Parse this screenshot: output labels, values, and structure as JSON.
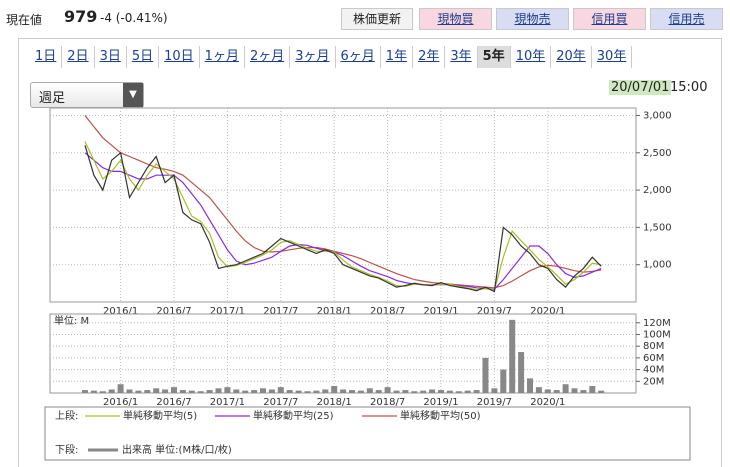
{
  "header": {
    "price_label": "現在値",
    "price": "979",
    "change": "-4 (-0.41%)",
    "buttons": [
      "株価更新",
      "現物買",
      "現物売",
      "信用買",
      "信用売"
    ]
  },
  "tabs": [
    "1日",
    "2日",
    "3日",
    "5日",
    "10日",
    "1ヶ月",
    "2ヶ月",
    "3ヶ月",
    "6ヶ月",
    "1年",
    "2年",
    "3年",
    "5年",
    "10年",
    "20年",
    "30年"
  ],
  "active_tab": "5年",
  "select": "週足",
  "timestamp": {
    "date": "20/07/01",
    "time": "15:00"
  },
  "chart_data": [
    {
      "type": "line",
      "legend_label": "上段:",
      "x": [
        "2015/9",
        "2015/10",
        "2015/11",
        "2015/12",
        "2016/1",
        "2016/2",
        "2016/3",
        "2016/4",
        "2016/5",
        "2016/6",
        "2016/7",
        "2016/8",
        "2016/9",
        "2016/10",
        "2016/11",
        "2016/12",
        "2017/1",
        "2017/2",
        "2017/3",
        "2017/4",
        "2017/5",
        "2017/6",
        "2017/7",
        "2017/8",
        "2017/9",
        "2017/10",
        "2017/11",
        "2017/12",
        "2018/1",
        "2018/2",
        "2018/3",
        "2018/4",
        "2018/5",
        "2018/6",
        "2018/7",
        "2018/8",
        "2018/9",
        "2018/10",
        "2018/11",
        "2018/12",
        "2019/1",
        "2019/2",
        "2019/3",
        "2019/4",
        "2019/5",
        "2019/6",
        "2019/7",
        "2019/8",
        "2019/9",
        "2019/10",
        "2019/11",
        "2019/12",
        "2020/1",
        "2020/2",
        "2020/3",
        "2020/4",
        "2020/5",
        "2020/6",
        "2020/7"
      ],
      "values": [
        2600,
        2200,
        2000,
        2400,
        2500,
        1900,
        2100,
        2300,
        2450,
        2100,
        2200,
        1700,
        1600,
        1550,
        1300,
        950,
        980,
        1000,
        1050,
        1100,
        1150,
        1250,
        1350,
        1300,
        1250,
        1200,
        1150,
        1200,
        1150,
        1000,
        950,
        900,
        850,
        820,
        760,
        700,
        720,
        750,
        730,
        720,
        760,
        720,
        700,
        680,
        650,
        700,
        640,
        1500,
        1400,
        1250,
        1150,
        1000,
        950,
        800,
        700,
        850,
        950,
        1100,
        979
      ],
      "color": "#333333",
      "series": [
        {
          "name": "単純移動平均(5)",
          "color": "#a8c020",
          "values": [
            2650,
            2400,
            2150,
            2250,
            2400,
            2150,
            2000,
            2200,
            2350,
            2250,
            2150,
            1900,
            1650,
            1580,
            1420,
            1100,
            970,
            990,
            1030,
            1080,
            1130,
            1200,
            1300,
            1320,
            1270,
            1220,
            1180,
            1180,
            1170,
            1060,
            970,
            920,
            870,
            830,
            780,
            720,
            710,
            740,
            735,
            725,
            740,
            735,
            710,
            690,
            665,
            680,
            660,
            1100,
            1450,
            1320,
            1200,
            1070,
            970,
            860,
            740,
            800,
            900,
            1020,
            1000
          ]
        },
        {
          "name": "単純移動平均(25)",
          "color": "#8a2be2",
          "values": [
            2500,
            2400,
            2300,
            2250,
            2250,
            2200,
            2150,
            2150,
            2200,
            2200,
            2200,
            2100,
            1950,
            1800,
            1600,
            1400,
            1200,
            1050,
            1000,
            1020,
            1060,
            1100,
            1180,
            1250,
            1270,
            1260,
            1220,
            1190,
            1170,
            1120,
            1050,
            980,
            920,
            880,
            840,
            790,
            760,
            740,
            730,
            730,
            735,
            730,
            720,
            710,
            690,
            680,
            670,
            800,
            950,
            1100,
            1250,
            1250,
            1150,
            1000,
            880,
            830,
            850,
            900,
            950
          ]
        },
        {
          "name": "単純移動平均(50)",
          "color": "#c0504d",
          "values": [
            3000,
            2850,
            2700,
            2600,
            2500,
            2450,
            2400,
            2350,
            2300,
            2280,
            2250,
            2200,
            2100,
            2000,
            1900,
            1750,
            1600,
            1450,
            1320,
            1230,
            1180,
            1170,
            1180,
            1200,
            1220,
            1230,
            1230,
            1210,
            1180,
            1150,
            1120,
            1080,
            1030,
            980,
            930,
            880,
            840,
            800,
            780,
            760,
            750,
            740,
            730,
            720,
            710,
            700,
            690,
            720,
            780,
            850,
            920,
            970,
            990,
            980,
            950,
            920,
            900,
            910,
            930
          ]
        }
      ],
      "ylim": [
        500,
        3100
      ],
      "yticks": [
        {
          "value": 1000,
          "label": "1,000"
        },
        {
          "value": 1500,
          "label": "1,500"
        },
        {
          "value": 2000,
          "label": "2,000"
        },
        {
          "value": 2500,
          "label": "2,500"
        },
        {
          "value": 3000,
          "label": "3,000"
        }
      ],
      "xticks": [
        "2016/1",
        "2016/7",
        "2017/1",
        "2017/7",
        "2018/1",
        "2018/7",
        "2019/1",
        "2019/7",
        "2020/1"
      ],
      "grid": true
    },
    {
      "type": "bar",
      "legend_label": "下段:",
      "name": "出来高 単位:(M株/口/枚)",
      "unit_label": "単位: M",
      "color": "#888888",
      "x": [
        "2015/9",
        "2015/10",
        "2015/11",
        "2015/12",
        "2016/1",
        "2016/2",
        "2016/3",
        "2016/4",
        "2016/5",
        "2016/6",
        "2016/7",
        "2016/8",
        "2016/9",
        "2016/10",
        "2016/11",
        "2016/12",
        "2017/1",
        "2017/2",
        "2017/3",
        "2017/4",
        "2017/5",
        "2017/6",
        "2017/7",
        "2017/8",
        "2017/9",
        "2017/10",
        "2017/11",
        "2017/12",
        "2018/1",
        "2018/2",
        "2018/3",
        "2018/4",
        "2018/5",
        "2018/6",
        "2018/7",
        "2018/8",
        "2018/9",
        "2018/10",
        "2018/11",
        "2018/12",
        "2019/1",
        "2019/2",
        "2019/3",
        "2019/4",
        "2019/5",
        "2019/6",
        "2019/7",
        "2019/8",
        "2019/9",
        "2019/10",
        "2019/11",
        "2019/12",
        "2020/1",
        "2020/2",
        "2020/3",
        "2020/4",
        "2020/5",
        "2020/6",
        "2020/7"
      ],
      "values": [
        5,
        4,
        3,
        6,
        15,
        6,
        4,
        5,
        8,
        6,
        10,
        5,
        4,
        3,
        5,
        8,
        10,
        6,
        4,
        5,
        8,
        6,
        10,
        5,
        4,
        3,
        4,
        6,
        12,
        6,
        5,
        4,
        8,
        5,
        10,
        4,
        5,
        3,
        4,
        6,
        5,
        4,
        3,
        4,
        5,
        60,
        8,
        40,
        125,
        70,
        25,
        10,
        6,
        5,
        15,
        8,
        5,
        12,
        4
      ],
      "ylim": [
        0,
        135
      ],
      "yticks": [
        {
          "value": 20,
          "label": "20M"
        },
        {
          "value": 40,
          "label": "40M"
        },
        {
          "value": 60,
          "label": "60M"
        },
        {
          "value": 80,
          "label": "80M"
        },
        {
          "value": 100,
          "label": "100M"
        },
        {
          "value": 120,
          "label": "120M"
        }
      ],
      "xticks": [
        "2016/1",
        "2016/7",
        "2017/1",
        "2017/7",
        "2018/1",
        "2018/7",
        "2019/1",
        "2019/7",
        "2020/1"
      ],
      "grid": true
    }
  ]
}
